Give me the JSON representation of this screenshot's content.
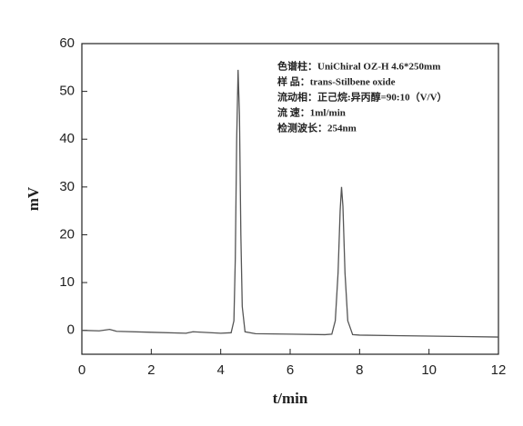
{
  "chart_data": {
    "type": "line",
    "xlabel": "t/min",
    "ylabel": "mV",
    "annotations": [
      "色谱柱：UniChiral OZ-H 4.6*250mm",
      "样 品：trans-Stilbene oxide",
      "流动相：正己烷:异丙醇=90:10（V/V）",
      "流 速：1ml/min",
      "检测波长：254nm"
    ],
    "x": [
      0,
      0.5,
      0.8,
      1,
      2,
      3,
      3.2,
      4,
      4.3,
      4.38,
      4.42,
      4.46,
      4.5,
      4.54,
      4.58,
      4.62,
      4.7,
      5,
      6,
      7,
      7.2,
      7.3,
      7.38,
      7.44,
      7.48,
      7.52,
      7.58,
      7.66,
      7.8,
      8,
      9,
      10,
      11,
      12
    ],
    "values": [
      0,
      -0.1,
      0.2,
      -0.2,
      -0.4,
      -0.6,
      -0.3,
      -0.6,
      -0.5,
      2,
      15,
      40,
      54.5,
      45,
      20,
      5,
      -0.3,
      -0.7,
      -0.8,
      -0.9,
      -0.8,
      2,
      12,
      25,
      30,
      26,
      12,
      2,
      -0.9,
      -1,
      -1.1,
      -1.2,
      -1.3,
      -1.4
    ],
    "color": "#555555",
    "xlim": [
      0,
      12
    ],
    "xticks": [
      0,
      2,
      4,
      6,
      8,
      10,
      12
    ],
    "ylim": [
      -5,
      60
    ],
    "yticks": [
      0,
      10,
      20,
      30,
      40,
      50,
      60
    ]
  }
}
